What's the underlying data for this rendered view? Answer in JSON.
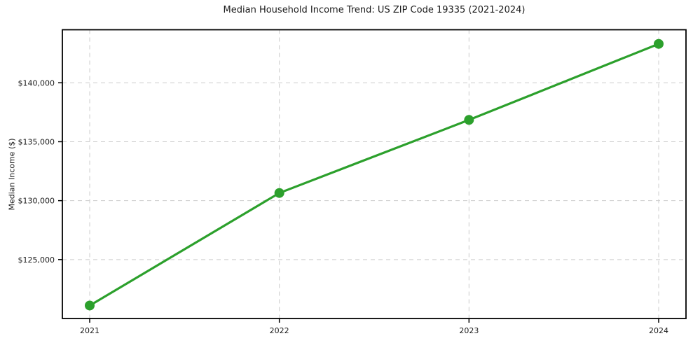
{
  "chart_data": {
    "type": "line",
    "title": "Median Household Income Trend: US ZIP Code 19335 (2021-2024)",
    "xlabel": "",
    "ylabel": "Median Income ($)",
    "x": [
      "2021",
      "2022",
      "2023",
      "2024"
    ],
    "series": [
      {
        "name": "Median Household Income",
        "values": [
          121100,
          130650,
          136850,
          143300
        ],
        "color": "#2ca02c",
        "marker": "circle"
      }
    ],
    "ylim": [
      120000,
      144500
    ],
    "yticks": [
      125000,
      130000,
      135000,
      140000
    ],
    "ytick_labels": [
      "$125,000",
      "$130,000",
      "$135,000",
      "$140,000"
    ],
    "grid": true,
    "grid_style": "dashed",
    "legend_position": "none",
    "colors": {
      "line": "#2ca02c",
      "grid": "#cccccc",
      "text": "#1a1a1a",
      "spine": "#000000",
      "background": "#ffffff"
    }
  }
}
